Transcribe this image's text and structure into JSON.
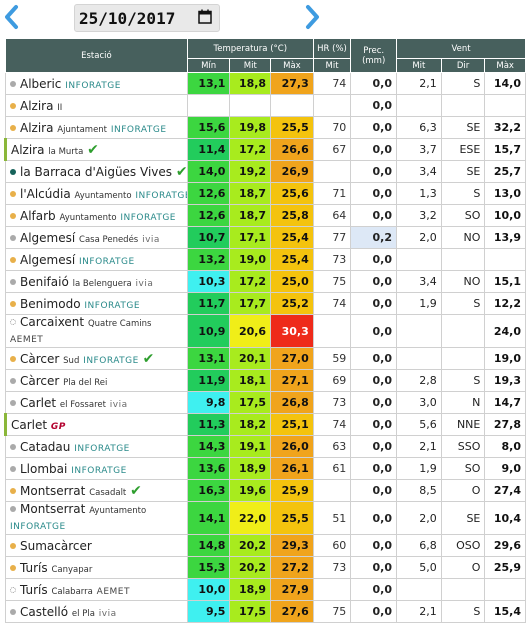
{
  "date": "25/10/2017",
  "header": {
    "station": "Estació",
    "temperature": "Temperatura (°C)",
    "humidity": "HR (%)",
    "precip": "Prec. (mm)",
    "wind": "Vent",
    "t_min": "Mín",
    "t_avg": "Mit",
    "t_max": "Màx",
    "hr_avg": "Mit",
    "w_avg": "Mit",
    "w_dir": "Dir",
    "w_max": "Màx"
  },
  "colors": {
    "header_bg": "#47605d",
    "temp_scale": [
      "#3ff0f0",
      "#22cc5c",
      "#3cd640",
      "#a8eb1e",
      "#f0ee18",
      "#f4c30e",
      "#f0a41c",
      "#ee2a1a"
    ]
  },
  "rows": [
    {
      "name": "Alberic",
      "sub": "",
      "network": "INFORATGE",
      "netclass": "inforatge",
      "dot": "#aaaaaa",
      "check": "",
      "mark": false,
      "tmin": "13,1",
      "tavg": "18,8",
      "tmax": "27,3",
      "hr": "74",
      "prec": "0,0",
      "wavg": "2,1",
      "wdir": "S",
      "wmax": "14,0"
    },
    {
      "name": "Alzira",
      "sub": "II",
      "network": "",
      "netclass": "",
      "dot": "#e8b04a",
      "check": "",
      "mark": false,
      "tmin": "",
      "tavg": "",
      "tmax": "",
      "hr": "",
      "prec": "0,0",
      "wavg": "",
      "wdir": "",
      "wmax": ""
    },
    {
      "name": "Alzira",
      "sub": "Ajuntament",
      "network": "INFORATGE",
      "netclass": "inforatge",
      "dot": "#e8b04a",
      "check": "",
      "mark": false,
      "tmin": "15,6",
      "tavg": "19,8",
      "tmax": "25,5",
      "hr": "70",
      "prec": "0,0",
      "wavg": "6,3",
      "wdir": "SE",
      "wmax": "32,2"
    },
    {
      "name": "Alzira",
      "sub": "la Murta",
      "network": "",
      "netclass": "",
      "dot": "",
      "check": "✔",
      "mark": true,
      "tmin": "11,4",
      "tavg": "17,2",
      "tmax": "26,6",
      "hr": "67",
      "prec": "0,0",
      "wavg": "3,7",
      "wdir": "ESE",
      "wmax": "15,7"
    },
    {
      "name": "la Barraca d'Aigües Vives",
      "sub": "",
      "network": "",
      "netclass": "",
      "dot": "#16625a",
      "check": "✔",
      "mark": false,
      "tmin": "14,0",
      "tavg": "19,2",
      "tmax": "26,9",
      "hr": "",
      "prec": "0,0",
      "wavg": "3,4",
      "wdir": "SE",
      "wmax": "25,7"
    },
    {
      "name": "l'Alcúdia",
      "sub": "Ayuntamento",
      "network": "INFORATGE",
      "netclass": "inforatge",
      "dot": "#e8b04a",
      "check": "",
      "mark": false,
      "tmin": "12,6",
      "tavg": "18,7",
      "tmax": "25,6",
      "hr": "71",
      "prec": "0,0",
      "wavg": "1,3",
      "wdir": "S",
      "wmax": "13,0"
    },
    {
      "name": "Alfarb",
      "sub": "Ayuntamento",
      "network": "INFORATGE",
      "netclass": "inforatge",
      "dot": "#e8b04a",
      "check": "",
      "mark": false,
      "tmin": "12,6",
      "tavg": "18,7",
      "tmax": "25,8",
      "hr": "64",
      "prec": "0,0",
      "wavg": "3,2",
      "wdir": "SO",
      "wmax": "10,0"
    },
    {
      "name": "Algemesí",
      "sub": "Casa Penedés",
      "network": "ivia",
      "netclass": "ivia",
      "dot": "#aaaaaa",
      "check": "",
      "mark": false,
      "tmin": "10,7",
      "tavg": "17,1",
      "tmax": "25,4",
      "hr": "77",
      "prec": "0,2",
      "wavg": "2,0",
      "wdir": "NO",
      "wmax": "13,9"
    },
    {
      "name": "Algemesí",
      "sub": "",
      "network": "INFORATGE",
      "netclass": "inforatge",
      "dot": "#e8b04a",
      "check": "",
      "mark": false,
      "tmin": "13,2",
      "tavg": "19,0",
      "tmax": "25,4",
      "hr": "73",
      "prec": "0,0",
      "wavg": "",
      "wdir": "",
      "wmax": ""
    },
    {
      "name": "Benifaió",
      "sub": "la Belenguera",
      "network": "ivia",
      "netclass": "ivia",
      "dot": "#aaaaaa",
      "check": "",
      "mark": false,
      "tmin": "10,3",
      "tavg": "17,2",
      "tmax": "25,0",
      "hr": "75",
      "prec": "0,0",
      "wavg": "3,4",
      "wdir": "NO",
      "wmax": "15,1"
    },
    {
      "name": "Benimodo",
      "sub": "",
      "network": "INFORATGE",
      "netclass": "inforatge",
      "dot": "#e8b04a",
      "check": "",
      "mark": false,
      "tmin": "11,7",
      "tavg": "17,7",
      "tmax": "25,2",
      "hr": "74",
      "prec": "0,0",
      "wavg": "1,9",
      "wdir": "S",
      "wmax": "12,2"
    },
    {
      "name": "Carcaixent",
      "sub": "Quatre Camins",
      "network": "AEMET",
      "netclass": "aemet",
      "dot": "#ffffff",
      "check": "",
      "mark": false,
      "two": true,
      "tmin": "10,9",
      "tavg": "20,6",
      "tmax": "30,3",
      "hr": "",
      "prec": "0,0",
      "wavg": "",
      "wdir": "",
      "wmax": "24,0"
    },
    {
      "name": "Càrcer",
      "sub": "Sud",
      "network": "INFORATGE",
      "netclass": "inforatge",
      "dot": "#e8b04a",
      "check": "✔",
      "mark": false,
      "tmin": "13,1",
      "tavg": "20,1",
      "tmax": "27,0",
      "hr": "59",
      "prec": "0,0",
      "wavg": "",
      "wdir": "",
      "wmax": "19,0"
    },
    {
      "name": "Càrcer",
      "sub": "Pla del Rei",
      "network": "",
      "netclass": "",
      "dot": "#aaaaaa",
      "check": "",
      "mark": false,
      "tmin": "11,9",
      "tavg": "18,1",
      "tmax": "27,1",
      "hr": "69",
      "prec": "0,0",
      "wavg": "2,8",
      "wdir": "S",
      "wmax": "19,3"
    },
    {
      "name": "Carlet",
      "sub": "el Fossaret",
      "network": "ivia",
      "netclass": "ivia",
      "dot": "#aaaaaa",
      "check": "",
      "mark": false,
      "tmin": "9,8",
      "tavg": "17,5",
      "tmax": "26,8",
      "hr": "73",
      "prec": "0,0",
      "wavg": "3,0",
      "wdir": "N",
      "wmax": "14,7"
    },
    {
      "name": "Carlet",
      "sub": "",
      "network": "GP",
      "netclass": "gp",
      "dot": "",
      "check": "",
      "mark": true,
      "tmin": "11,3",
      "tavg": "18,2",
      "tmax": "25,1",
      "hr": "74",
      "prec": "0,0",
      "wavg": "5,6",
      "wdir": "NNE",
      "wmax": "27,8"
    },
    {
      "name": "Catadau",
      "sub": "",
      "network": "INFORATGE",
      "netclass": "inforatge",
      "dot": "#aaaaaa",
      "check": "",
      "mark": false,
      "tmin": "14,3",
      "tavg": "19,1",
      "tmax": "26,0",
      "hr": "63",
      "prec": "0,0",
      "wavg": "2,1",
      "wdir": "SSO",
      "wmax": "8,0"
    },
    {
      "name": "Llombai",
      "sub": "",
      "network": "INFORATGE",
      "netclass": "inforatge",
      "dot": "#aaaaaa",
      "check": "",
      "mark": false,
      "tmin": "13,6",
      "tavg": "18,9",
      "tmax": "26,1",
      "hr": "61",
      "prec": "0,0",
      "wavg": "1,9",
      "wdir": "SO",
      "wmax": "9,0"
    },
    {
      "name": "Montserrat",
      "sub": "Casadalt",
      "network": "",
      "netclass": "",
      "dot": "#e8b04a",
      "check": "✔",
      "mark": false,
      "tmin": "16,3",
      "tavg": "19,6",
      "tmax": "25,9",
      "hr": "",
      "prec": "0,0",
      "wavg": "8,5",
      "wdir": "O",
      "wmax": "27,4"
    },
    {
      "name": "Montserrat",
      "sub": "Ayuntamento",
      "network": "INFORATGE",
      "netclass": "inforatge",
      "dot": "#aaaaaa",
      "check": "",
      "mark": false,
      "two": true,
      "tmin": "14,1",
      "tavg": "22,0",
      "tmax": "25,5",
      "hr": "51",
      "prec": "0,0",
      "wavg": "2,0",
      "wdir": "SE",
      "wmax": "10,4"
    },
    {
      "name": "Sumacàrcer",
      "sub": "",
      "network": "",
      "netclass": "",
      "dot": "#e8b04a",
      "check": "",
      "mark": false,
      "tmin": "14,8",
      "tavg": "20,2",
      "tmax": "29,3",
      "hr": "60",
      "prec": "0,0",
      "wavg": "6,8",
      "wdir": "OSO",
      "wmax": "29,6"
    },
    {
      "name": "Turís",
      "sub": "Canyapar",
      "network": "",
      "netclass": "",
      "dot": "#e8b04a",
      "check": "",
      "mark": false,
      "tmin": "15,3",
      "tavg": "20,2",
      "tmax": "27,2",
      "hr": "73",
      "prec": "0,0",
      "wavg": "5,0",
      "wdir": "O",
      "wmax": "25,9"
    },
    {
      "name": "Turís",
      "sub": "Calabarra",
      "network": "AEMET",
      "netclass": "aemet",
      "dot": "#ffffff",
      "check": "",
      "mark": false,
      "tmin": "10,0",
      "tavg": "18,9",
      "tmax": "27,9",
      "hr": "",
      "prec": "0,0",
      "wavg": "",
      "wdir": "",
      "wmax": ""
    },
    {
      "name": "Castelló",
      "sub": "el Pla",
      "network": "ivia",
      "netclass": "ivia",
      "dot": "#aaaaaa",
      "check": "",
      "mark": false,
      "tmin": "9,5",
      "tavg": "17,5",
      "tmax": "27,6",
      "hr": "75",
      "prec": "0,0",
      "wavg": "2,1",
      "wdir": "S",
      "wmax": "15,4"
    }
  ]
}
